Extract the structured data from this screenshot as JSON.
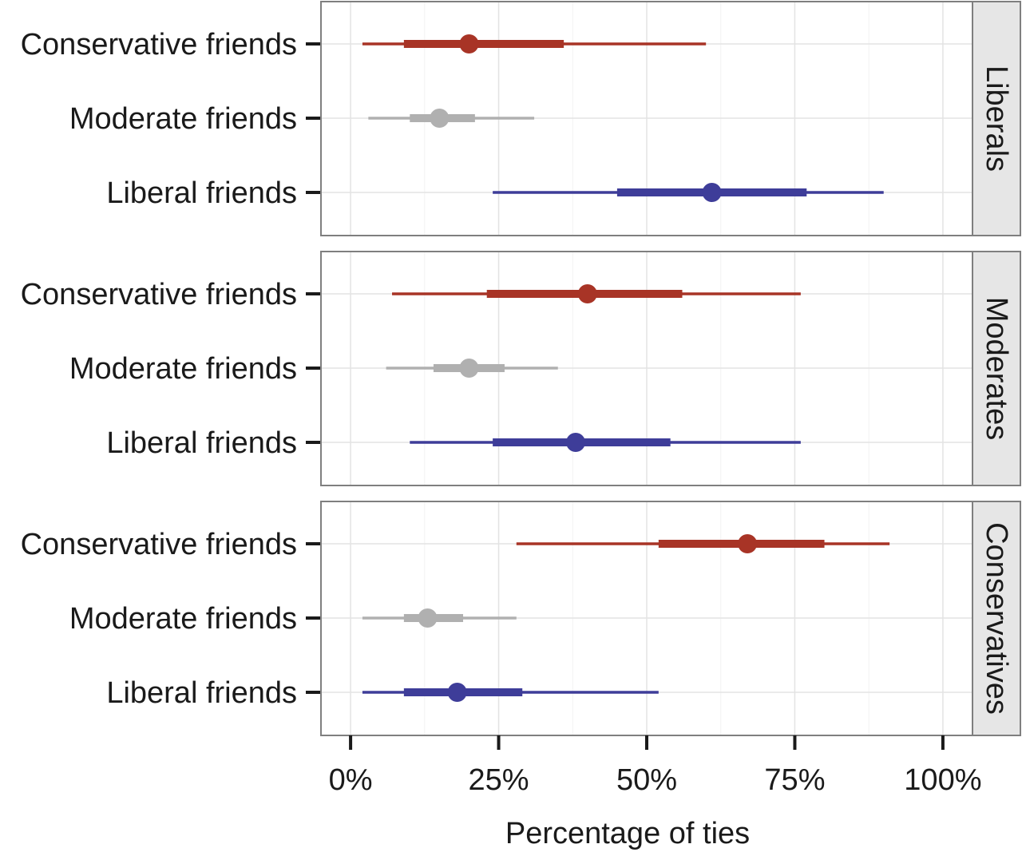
{
  "chart_data": {
    "type": "pointrange",
    "xlabel": "Percentage of ties",
    "xlim": [
      -5,
      105
    ],
    "x_ticks": [
      0,
      25,
      50,
      75,
      100
    ],
    "x_tick_labels": [
      "0%",
      "25%",
      "50%",
      "75%",
      "100%"
    ],
    "categories": [
      "Conservative friends",
      "Moderate friends",
      "Liberal friends"
    ],
    "grid": true,
    "colors": {
      "Conservative friends": "#a83426",
      "Moderate friends": "#b0b0b0",
      "Liberal friends": "#3e3d99"
    },
    "panels": [
      {
        "label": "Liberals",
        "points": [
          {
            "category": "Conservative friends",
            "estimate": 20,
            "inner": [
              9,
              36
            ],
            "outer": [
              2,
              60
            ]
          },
          {
            "category": "Moderate friends",
            "estimate": 15,
            "inner": [
              10,
              21
            ],
            "outer": [
              3,
              31
            ]
          },
          {
            "category": "Liberal friends",
            "estimate": 61,
            "inner": [
              45,
              77
            ],
            "outer": [
              24,
              90
            ]
          }
        ]
      },
      {
        "label": "Moderates",
        "points": [
          {
            "category": "Conservative friends",
            "estimate": 40,
            "inner": [
              23,
              56
            ],
            "outer": [
              7,
              76
            ]
          },
          {
            "category": "Moderate friends",
            "estimate": 20,
            "inner": [
              14,
              26
            ],
            "outer": [
              6,
              35
            ]
          },
          {
            "category": "Liberal friends",
            "estimate": 38,
            "inner": [
              24,
              54
            ],
            "outer": [
              10,
              76
            ]
          }
        ]
      },
      {
        "label": "Conservatives",
        "points": [
          {
            "category": "Conservative friends",
            "estimate": 67,
            "inner": [
              52,
              80
            ],
            "outer": [
              28,
              91
            ]
          },
          {
            "category": "Moderate friends",
            "estimate": 13,
            "inner": [
              9,
              19
            ],
            "outer": [
              2,
              28
            ]
          },
          {
            "category": "Liberal friends",
            "estimate": 18,
            "inner": [
              9,
              29
            ],
            "outer": [
              2,
              52
            ]
          }
        ]
      }
    ]
  }
}
